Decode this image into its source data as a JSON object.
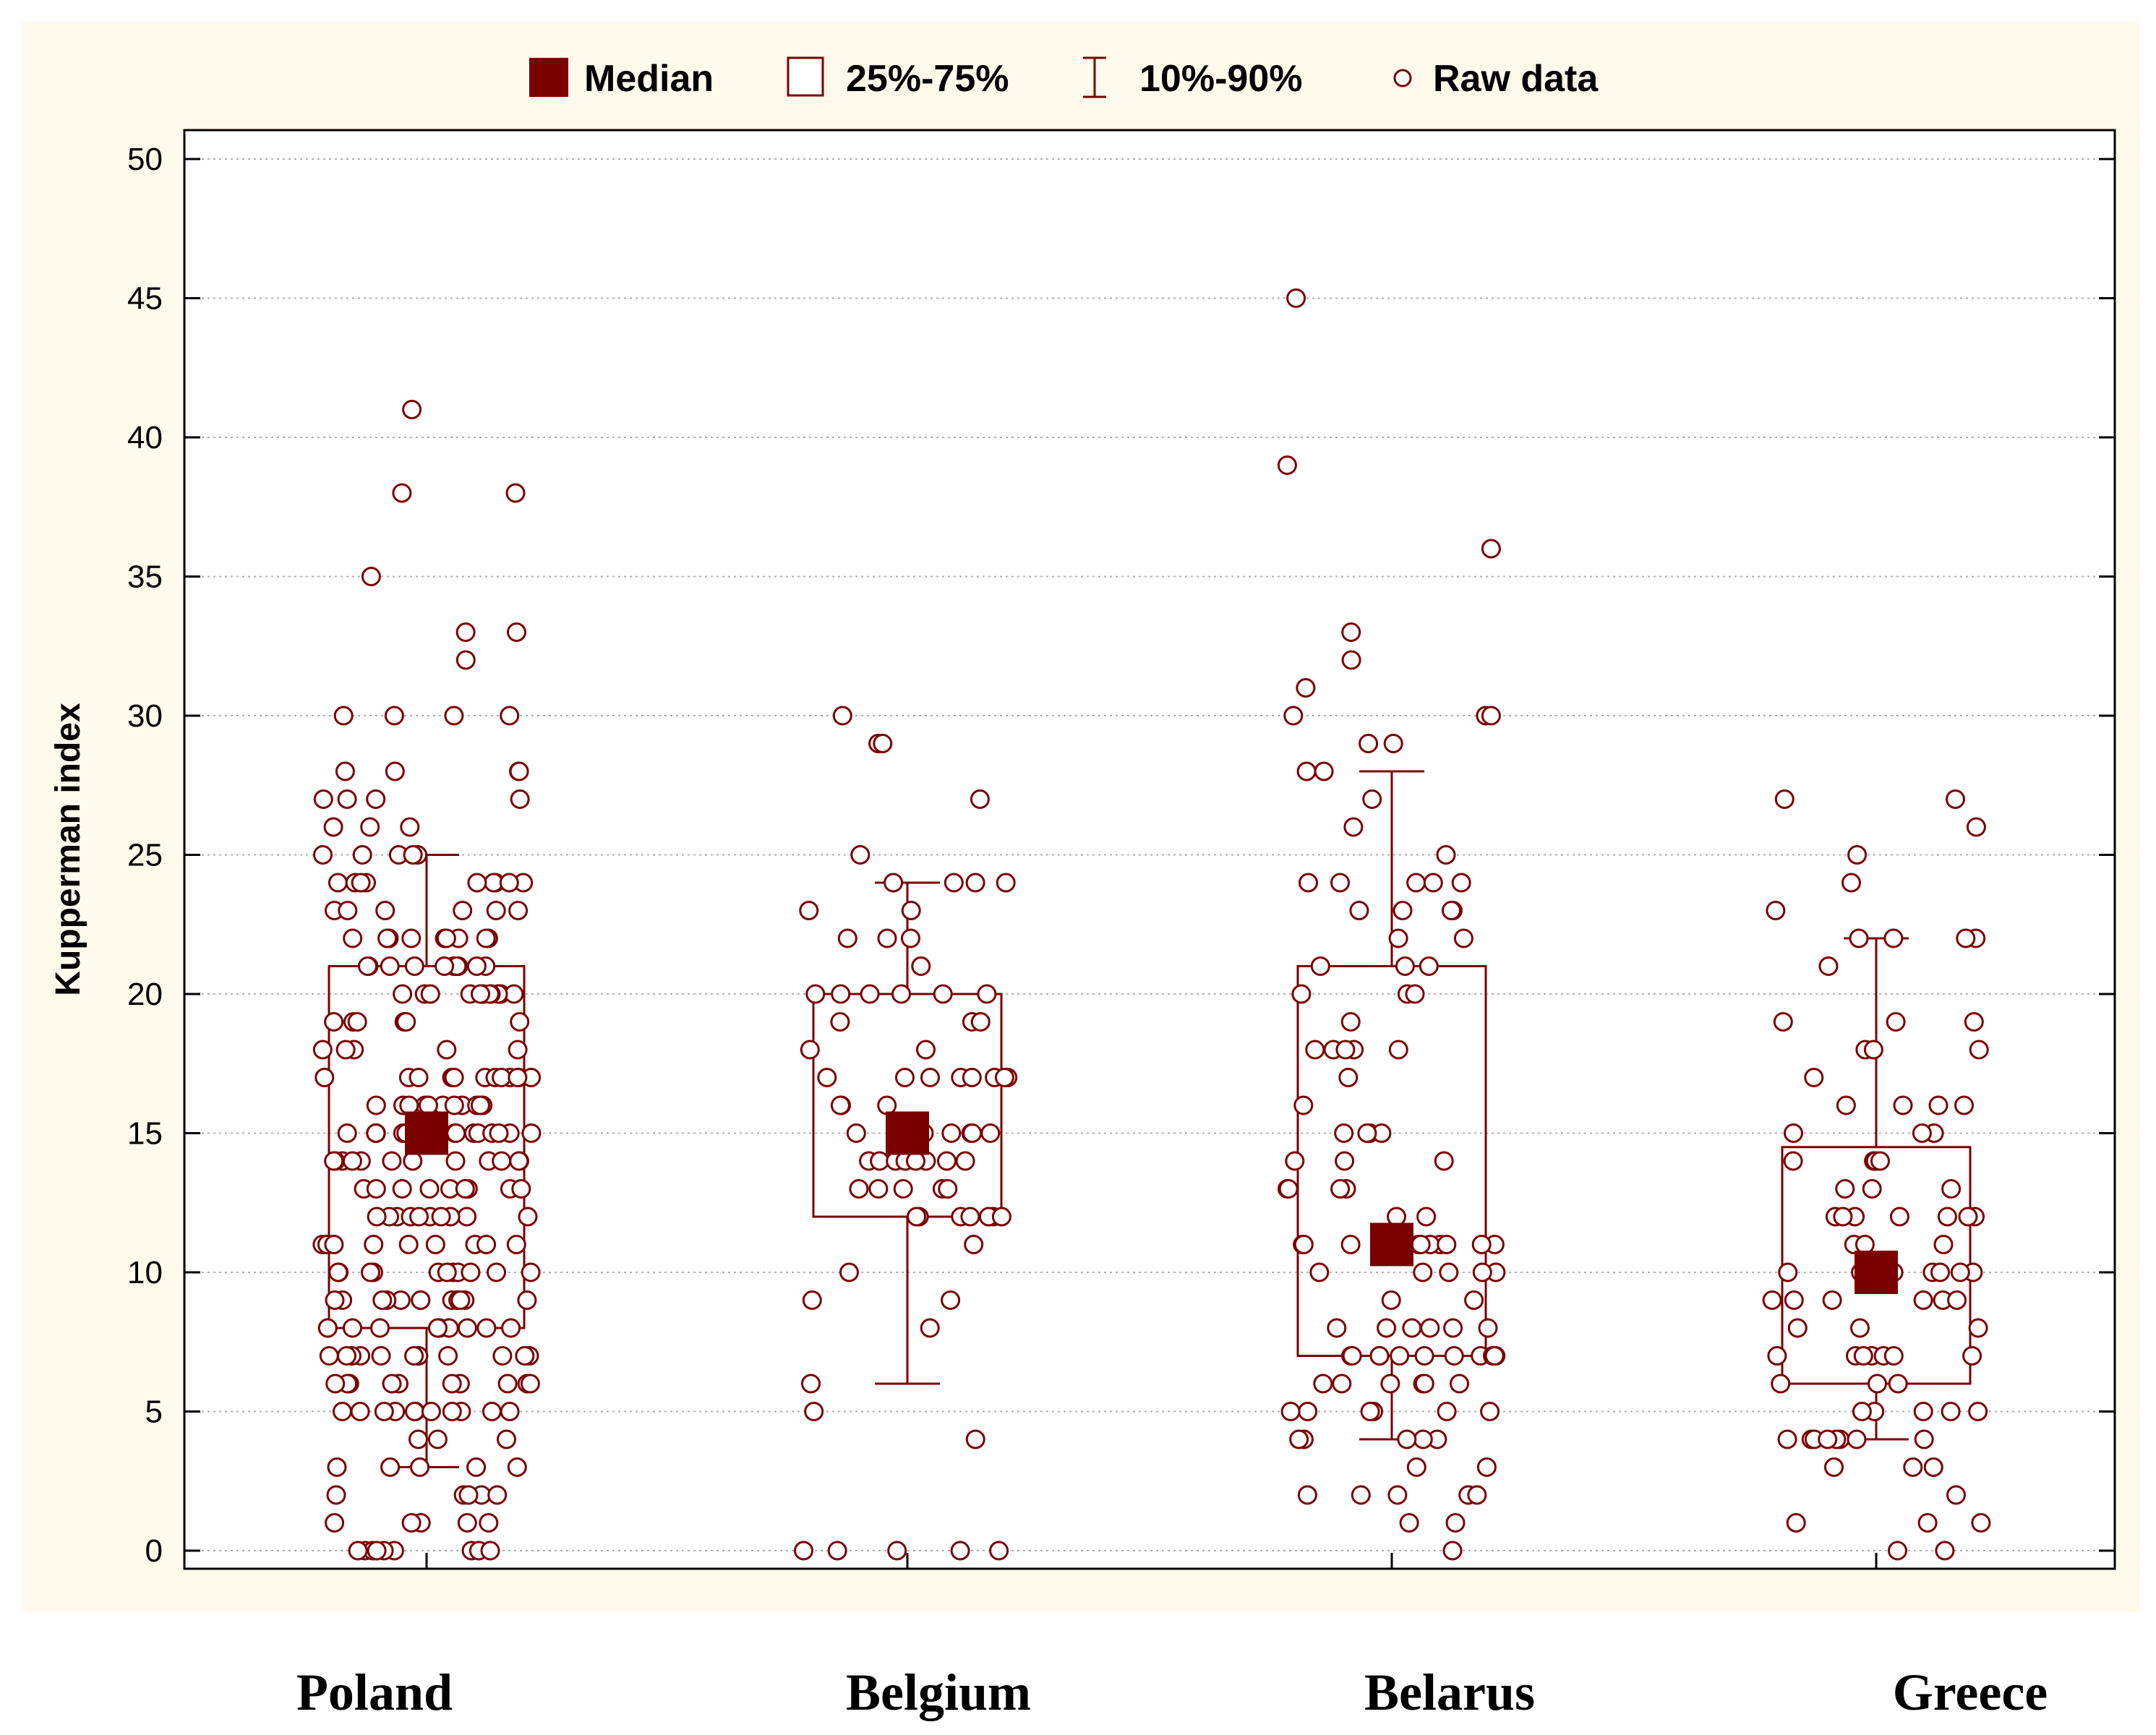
{
  "chart_data": {
    "type": "box",
    "title": "",
    "xlabel": "",
    "ylabel": "Kupperman index",
    "ylim": [
      0,
      50
    ],
    "yticks": [
      0,
      5,
      10,
      15,
      20,
      25,
      30,
      35,
      40,
      45,
      50
    ],
    "grid": true,
    "colors": {
      "primary": "#7b0000",
      "panel": "#fffaeb",
      "grid": "#b0b0b0"
    },
    "legend": {
      "placement": "top",
      "items": [
        {
          "label": "Median",
          "marker": "filled-square"
        },
        {
          "label": "25%-75%",
          "marker": "open-square"
        },
        {
          "label": "10%-90%",
          "marker": "whisker"
        },
        {
          "label": "Raw data",
          "marker": "open-circle"
        }
      ]
    },
    "categories": [
      "Poland",
      "Belgium",
      "Belarus",
      "Greece"
    ],
    "series": [
      {
        "name": "Poland",
        "median": 15,
        "q1": 8,
        "q3": 21,
        "p10": 3,
        "p90": 25,
        "raw": [
          0,
          0,
          0,
          0,
          0,
          0,
          0,
          0,
          0,
          1,
          1,
          1,
          1,
          1,
          2,
          2,
          2,
          2,
          2,
          3,
          3,
          3,
          3,
          3,
          4,
          4,
          4,
          5,
          5,
          5,
          5,
          5,
          5,
          5,
          5,
          5,
          5,
          5,
          6,
          6,
          6,
          6,
          6,
          6,
          6,
          6,
          6,
          6,
          7,
          7,
          7,
          7,
          7,
          7,
          7,
          7,
          7,
          7,
          7,
          7,
          8,
          8,
          8,
          8,
          8,
          8,
          8,
          8,
          8,
          8,
          9,
          9,
          9,
          9,
          9,
          9,
          9,
          9,
          9,
          9,
          9,
          9,
          9,
          10,
          10,
          10,
          10,
          10,
          10,
          10,
          10,
          10,
          10,
          10,
          11,
          11,
          11,
          11,
          11,
          11,
          11,
          11,
          11,
          11,
          12,
          12,
          12,
          12,
          12,
          12,
          12,
          12,
          12,
          12,
          13,
          13,
          13,
          13,
          13,
          13,
          13,
          13,
          13,
          14,
          14,
          14,
          14,
          14,
          14,
          14,
          14,
          14,
          14,
          14,
          14,
          15,
          15,
          15,
          15,
          15,
          15,
          15,
          15,
          15,
          15,
          15,
          15,
          15,
          15,
          16,
          16,
          16,
          16,
          16,
          16,
          16,
          16,
          16,
          16,
          16,
          17,
          17,
          17,
          17,
          17,
          17,
          17,
          17,
          17,
          17,
          17,
          17,
          18,
          18,
          18,
          18,
          18,
          19,
          19,
          19,
          19,
          19,
          19,
          20,
          20,
          20,
          20,
          20,
          20,
          20,
          20,
          20,
          20,
          20,
          21,
          21,
          21,
          21,
          21,
          21,
          21,
          21,
          21,
          21,
          22,
          22,
          22,
          22,
          22,
          22,
          22,
          22,
          22,
          23,
          23,
          23,
          23,
          23,
          23,
          24,
          24,
          24,
          24,
          24,
          24,
          24,
          24,
          24,
          25,
          25,
          25,
          25,
          25,
          26,
          26,
          26,
          27,
          27,
          27,
          27,
          28,
          28,
          28,
          28,
          30,
          30,
          30,
          30,
          32,
          33,
          33,
          35,
          38,
          38,
          41
        ]
      },
      {
        "name": "Belgium",
        "median": 15,
        "q1": 12,
        "q3": 20,
        "p10": 6,
        "p90": 24,
        "raw": [
          0,
          0,
          0,
          0,
          0,
          4,
          5,
          6,
          8,
          9,
          9,
          10,
          11,
          12,
          12,
          12,
          12,
          12,
          12,
          12,
          13,
          13,
          13,
          13,
          13,
          14,
          14,
          14,
          14,
          14,
          14,
          14,
          14,
          15,
          15,
          15,
          15,
          15,
          15,
          15,
          16,
          16,
          16,
          17,
          17,
          17,
          17,
          17,
          17,
          17,
          17,
          18,
          18,
          19,
          19,
          19,
          20,
          20,
          20,
          20,
          20,
          20,
          21,
          22,
          22,
          22,
          23,
          23,
          24,
          24,
          24,
          24,
          25,
          27,
          29,
          29,
          30
        ]
      },
      {
        "name": "Belarus",
        "median": 11,
        "q1": 7,
        "q3": 21,
        "p10": 4,
        "p90": 28,
        "raw": [
          0,
          1,
          1,
          2,
          2,
          2,
          2,
          2,
          3,
          3,
          4,
          4,
          4,
          4,
          4,
          5,
          5,
          5,
          5,
          5,
          5,
          6,
          6,
          6,
          6,
          6,
          6,
          7,
          7,
          7,
          7,
          7,
          7,
          7,
          7,
          7,
          7,
          7,
          8,
          8,
          8,
          8,
          8,
          8,
          9,
          9,
          10,
          10,
          10,
          10,
          10,
          11,
          11,
          11,
          11,
          11,
          11,
          11,
          11,
          11,
          11,
          12,
          12,
          13,
          13,
          13,
          13,
          14,
          14,
          14,
          15,
          15,
          15,
          15,
          16,
          17,
          18,
          18,
          18,
          18,
          18,
          19,
          20,
          20,
          20,
          21,
          21,
          21,
          22,
          22,
          23,
          23,
          23,
          23,
          24,
          24,
          24,
          24,
          24,
          25,
          26,
          27,
          28,
          28,
          29,
          29,
          30,
          30,
          30,
          31,
          32,
          33,
          36,
          39,
          45
        ]
      },
      {
        "name": "Greece",
        "median": 10,
        "q1": 6,
        "q3": 14.5,
        "p10": 4,
        "p90": 22,
        "raw": [
          0,
          0,
          1,
          1,
          1,
          2,
          3,
          3,
          3,
          4,
          4,
          4,
          4,
          4,
          4,
          4,
          4,
          5,
          5,
          5,
          5,
          5,
          6,
          6,
          6,
          7,
          7,
          7,
          7,
          7,
          7,
          7,
          8,
          8,
          8,
          9,
          9,
          9,
          9,
          9,
          9,
          10,
          10,
          10,
          10,
          10,
          10,
          10,
          10,
          10,
          10,
          11,
          11,
          11,
          12,
          12,
          12,
          12,
          12,
          12,
          12,
          13,
          13,
          13,
          14,
          14,
          14,
          14,
          15,
          15,
          15,
          16,
          16,
          16,
          16,
          17,
          18,
          18,
          18,
          19,
          19,
          19,
          21,
          22,
          22,
          22,
          22,
          23,
          24,
          25,
          26,
          27,
          27
        ]
      }
    ]
  }
}
